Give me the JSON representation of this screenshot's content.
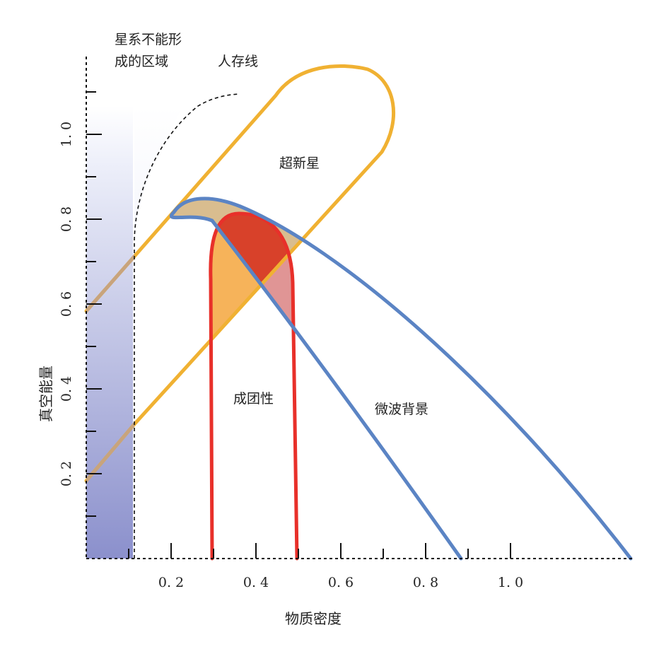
{
  "chart_data": {
    "type": "area",
    "xlabel": "物质密度",
    "ylabel": "真空能量",
    "xlim": [
      0,
      1.3
    ],
    "ylim": [
      0,
      1.18
    ],
    "x_ticks": [
      0.1,
      0.2,
      0.3,
      0.4,
      0.5,
      0.6,
      0.7,
      0.8,
      0.9,
      1.0
    ],
    "x_tick_labels": [
      {
        "value": 0.2,
        "label": "0. 2"
      },
      {
        "value": 0.4,
        "label": "0. 4"
      },
      {
        "value": 0.6,
        "label": "0. 6"
      },
      {
        "value": 0.8,
        "label": "0. 8"
      },
      {
        "value": 1.0,
        "label": "1. 0"
      }
    ],
    "y_ticks": [
      0.1,
      0.2,
      0.3,
      0.4,
      0.5,
      0.6,
      0.7,
      0.8,
      0.9,
      1.0,
      1.1
    ],
    "y_tick_labels": [
      {
        "value": 0.2,
        "label": "0. 2"
      },
      {
        "value": 0.4,
        "label": "0. 4"
      },
      {
        "value": 0.6,
        "label": "0. 6"
      },
      {
        "value": 0.8,
        "label": "0. 8"
      },
      {
        "value": 1.0,
        "label": "1. 0"
      }
    ],
    "regions": [
      {
        "id": "no-galaxy",
        "label_lines": [
          "星系不能形",
          "成的区域"
        ],
        "x_max": 0.11,
        "colors": [
          "#eef0fa",
          "#8b90cc"
        ]
      },
      {
        "id": "anthropic",
        "label": "人存线",
        "color": "#111111",
        "points": [
          [
            0.11,
            0.0
          ],
          [
            0.11,
            0.75
          ],
          [
            0.15,
            0.9
          ],
          [
            0.22,
            1.02
          ],
          [
            0.3,
            1.08
          ],
          [
            0.37,
            1.095
          ]
        ]
      },
      {
        "id": "supernova",
        "label": "超新星",
        "color": "#f0b132",
        "points": [
          [
            0.0,
            0.58
          ],
          [
            0.18,
            0.8
          ],
          [
            0.42,
            1.09
          ],
          [
            0.6,
            1.16
          ],
          [
            0.73,
            1.09
          ],
          [
            0.67,
            0.89
          ],
          [
            0.25,
            0.42
          ],
          [
            0.0,
            0.19
          ]
        ]
      },
      {
        "id": "cmb",
        "label": "微波背景",
        "color": "#5b84c4",
        "points": [
          [
            0.88,
            0.0
          ],
          [
            0.58,
            0.42
          ],
          [
            0.28,
            0.81
          ],
          [
            0.21,
            0.8
          ],
          [
            0.27,
            0.84
          ],
          [
            0.43,
            0.78
          ],
          [
            0.9,
            0.47
          ],
          [
            1.3,
            0.0
          ]
        ]
      },
      {
        "id": "cluster",
        "label": "成团性",
        "color": "#e8302a",
        "points": [
          [
            0.3,
            0.0
          ],
          [
            0.3,
            0.7
          ],
          [
            0.35,
            0.8
          ],
          [
            0.41,
            0.79
          ],
          [
            0.5,
            0.6
          ],
          [
            0.5,
            0.0
          ]
        ]
      }
    ]
  }
}
